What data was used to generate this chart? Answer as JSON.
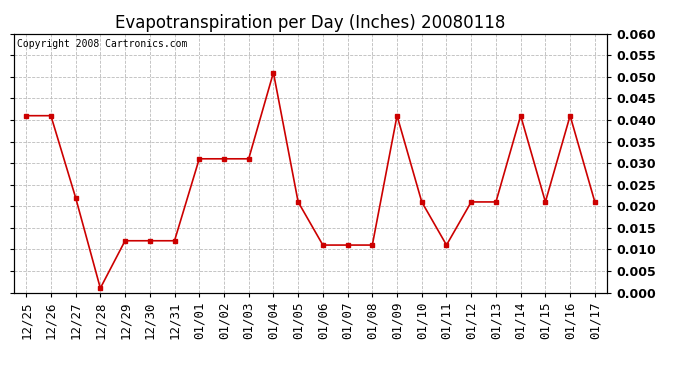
{
  "title": "Evapotranspiration per Day (Inches) 20080118",
  "copyright_text": "Copyright 2008 Cartronics.com",
  "dates": [
    "12/25",
    "12/26",
    "12/27",
    "12/28",
    "12/29",
    "12/30",
    "12/31",
    "01/01",
    "01/02",
    "01/03",
    "01/04",
    "01/05",
    "01/06",
    "01/07",
    "01/08",
    "01/09",
    "01/10",
    "01/11",
    "01/12",
    "01/13",
    "01/14",
    "01/15",
    "01/16",
    "01/17"
  ],
  "values": [
    0.041,
    0.041,
    0.022,
    0.001,
    0.012,
    0.012,
    0.012,
    0.031,
    0.031,
    0.031,
    0.051,
    0.021,
    0.011,
    0.011,
    0.011,
    0.041,
    0.021,
    0.011,
    0.021,
    0.021,
    0.041,
    0.021,
    0.041,
    0.021
  ],
  "line_color": "#cc0000",
  "marker": "s",
  "marker_size": 3,
  "ylim": [
    0.0,
    0.06
  ],
  "ytick_step": 0.005,
  "background_color": "#ffffff",
  "plot_bg_color": "#ffffff",
  "grid_color": "#bbbbbb",
  "title_fontsize": 12,
  "copyright_fontsize": 7,
  "tick_fontsize": 9,
  "right_tick_fontweight": "bold"
}
